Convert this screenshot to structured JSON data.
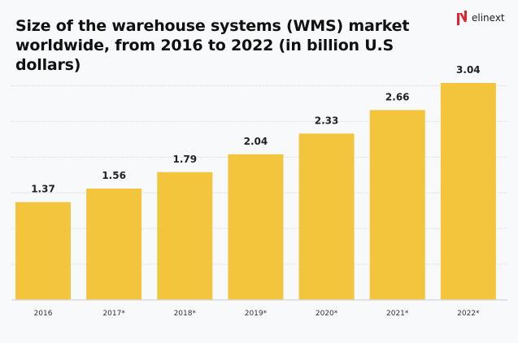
{
  "brand": {
    "name": "elinext",
    "accent": "#e5202e"
  },
  "chart_data": {
    "type": "bar",
    "title": "Size of the warehouse systems (WMS) market worldwide, from 2016 to 2022 (in billion U.S dollars)",
    "categories": [
      "2016",
      "2017*",
      "2018*",
      "2019*",
      "2020*",
      "2021*",
      "2022*"
    ],
    "values": [
      1.37,
      1.56,
      1.79,
      2.04,
      2.33,
      2.66,
      3.04
    ],
    "data_labels": [
      "1.37",
      "1.56",
      "1.79",
      "2.04",
      "2.33",
      "2.66",
      "3.04"
    ],
    "xlabel": "",
    "ylabel": "",
    "ylim": [
      0,
      3.04
    ],
    "grid": true,
    "bar_color": "#f2c53d"
  }
}
